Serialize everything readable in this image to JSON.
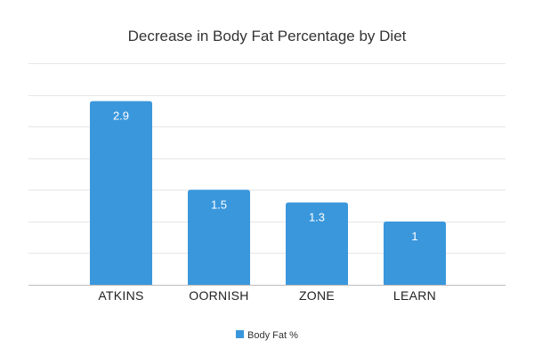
{
  "chart_data": {
    "type": "bar",
    "title": "Decrease in Body Fat Percentage by Diet",
    "xlabel": "",
    "ylabel": "",
    "categories": [
      "ATKINS",
      "OORNISH",
      "ZONE",
      "LEARN"
    ],
    "series": [
      {
        "name": "Body Fat %",
        "values": [
          2.9,
          1.5,
          1.3,
          1
        ],
        "labels": [
          "2.9",
          "1.5",
          "1.3",
          "1"
        ],
        "color": "#3a97dc"
      }
    ],
    "ylim": [
      0,
      3.5
    ],
    "ystep": 0.5,
    "grid": true,
    "legend": "bottom-center"
  }
}
